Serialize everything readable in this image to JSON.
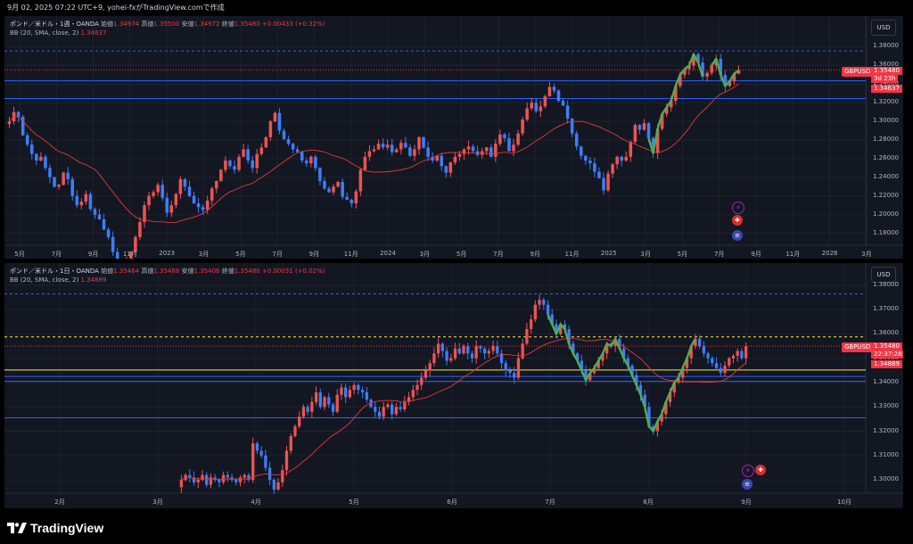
{
  "header": {
    "text": "9月 02, 2025 07:22 UTC+9,  yohei-fxがTradingView.comで作成"
  },
  "chart_data": [
    {
      "type": "candlestick",
      "symbol": "GBPUSD",
      "legend": {
        "title": "ポンド／米ドル・1週・OANDA",
        "open_label": "始値",
        "open": "1.34974",
        "high_label": "高値",
        "high": "1.35500",
        "low_label": "安値",
        "low": "1.34972",
        "close_label": "終値",
        "close": "1.35480",
        "change": "+0.00433 (+0.32%)"
      },
      "indicator": {
        "name": "BB (20, SMA, close, 2)",
        "value": "1.34637"
      },
      "currency": "USD",
      "y_ticks": [
        "1.38000",
        "1.36000",
        "1.34000",
        "1.32000",
        "1.30000",
        "1.28000",
        "1.26000",
        "1.24000",
        "1.22000",
        "1.20000",
        "1.18000"
      ],
      "x_ticks": [
        "5月",
        "7月",
        "9月",
        "11月",
        "2023",
        "3月",
        "5月",
        "7月",
        "9月",
        "11月",
        "2024",
        "3月",
        "5月",
        "7月",
        "9月",
        "11月",
        "2025",
        "3月",
        "5月",
        "7月",
        "9月",
        "11月",
        "2026",
        "3月"
      ],
      "ylim": [
        1.17,
        1.39
      ],
      "price_tags": {
        "last": "1.35480",
        "countdown": "3d 23h",
        "bb": "1.34637"
      },
      "h_lines": [
        1.3435,
        1.3245
      ],
      "dashed_line": 1.3755,
      "close_path": [
        1.3,
        1.31,
        1.305,
        1.285,
        1.275,
        1.265,
        1.258,
        1.262,
        1.25,
        1.24,
        1.23,
        1.232,
        1.245,
        1.238,
        1.22,
        1.21,
        1.214,
        1.222,
        1.206,
        1.2,
        1.195,
        1.184,
        1.176,
        1.16,
        1.15,
        1.145,
        1.15,
        1.16,
        1.176,
        1.192,
        1.21,
        1.22,
        1.224,
        1.232,
        1.218,
        1.202,
        1.21,
        1.222,
        1.238,
        1.23,
        1.22,
        1.212,
        1.208,
        1.205,
        1.215,
        1.228,
        1.236,
        1.248,
        1.258,
        1.252,
        1.248,
        1.262,
        1.27,
        1.258,
        1.25,
        1.265,
        1.272,
        1.283,
        1.3,
        1.309,
        1.29,
        1.281,
        1.276,
        1.27,
        1.267,
        1.258,
        1.255,
        1.262,
        1.25,
        1.236,
        1.228,
        1.224,
        1.23,
        1.235,
        1.219,
        1.216,
        1.212,
        1.225,
        1.248,
        1.262,
        1.268,
        1.27,
        1.276,
        1.272,
        1.275,
        1.267,
        1.27,
        1.277,
        1.272,
        1.263,
        1.27,
        1.283,
        1.272,
        1.262,
        1.258,
        1.263,
        1.252,
        1.245,
        1.256,
        1.262,
        1.265,
        1.27,
        1.273,
        1.268,
        1.264,
        1.268,
        1.272,
        1.262,
        1.276,
        1.286,
        1.282,
        1.268,
        1.275,
        1.287,
        1.302,
        1.314,
        1.32,
        1.311,
        1.316,
        1.327,
        1.337,
        1.333,
        1.322,
        1.317,
        1.303,
        1.287,
        1.273,
        1.263,
        1.258,
        1.255,
        1.246,
        1.239,
        1.226,
        1.244,
        1.254,
        1.262,
        1.258,
        1.262,
        1.278,
        1.296,
        1.291,
        1.298,
        1.282,
        1.266,
        1.292,
        1.308,
        1.315,
        1.322,
        1.338,
        1.35,
        1.356,
        1.36,
        1.372,
        1.363,
        1.348,
        1.352,
        1.36,
        1.367,
        1.35,
        1.338,
        1.343,
        1.351,
        1.355
      ]
    },
    {
      "type": "candlestick",
      "symbol": "GBPUSD",
      "legend": {
        "title": "ポンド／米ドル・1日・OANDA",
        "open_label": "始値",
        "open": "1.35464",
        "high_label": "高値",
        "high": "1.35488",
        "low_label": "安値",
        "low": "1.35406",
        "close_label": "終値",
        "close": "1.35480",
        "change": "+0.00031 (+0.02%)"
      },
      "indicator": {
        "name": "BB (20, SMA, close, 2)",
        "value": "1.34889"
      },
      "currency": "USD",
      "y_ticks": [
        "1.38000",
        "1.37000",
        "1.36000",
        "1.35000",
        "1.34000",
        "1.33000",
        "1.32000",
        "1.31000",
        "1.30000"
      ],
      "x_ticks": [
        "2月",
        "3月",
        "4月",
        "5月",
        "6月",
        "7月",
        "8月",
        "9月",
        "10月"
      ],
      "ylim": [
        1.296,
        1.384
      ],
      "price_tags": {
        "last": "1.35480",
        "countdown": "22:37:28",
        "bb": "1.34889"
      },
      "h_lines": [
        1.3425,
        1.3405,
        1.3255
      ],
      "yellow_line": 1.3452,
      "dashed_lines": [
        1.3765,
        1.3588
      ],
      "close_path": [
        1.3,
        1.302,
        1.301,
        1.299,
        1.3,
        1.302,
        1.298,
        1.301,
        1.3,
        1.299,
        1.302,
        1.301,
        1.3,
        1.299,
        1.301,
        1.302,
        1.3,
        1.315,
        1.312,
        1.31,
        1.305,
        1.3,
        1.296,
        1.299,
        1.304,
        1.312,
        1.318,
        1.322,
        1.326,
        1.33,
        1.328,
        1.332,
        1.336,
        1.33,
        1.334,
        1.331,
        1.328,
        1.335,
        1.338,
        1.334,
        1.337,
        1.339,
        1.337,
        1.336,
        1.333,
        1.33,
        1.328,
        1.326,
        1.33,
        1.331,
        1.327,
        1.33,
        1.329,
        1.332,
        1.334,
        1.337,
        1.339,
        1.342,
        1.345,
        1.348,
        1.352,
        1.356,
        1.353,
        1.349,
        1.35,
        1.354,
        1.352,
        1.355,
        1.352,
        1.35,
        1.355,
        1.354,
        1.352,
        1.353,
        1.355,
        1.352,
        1.348,
        1.345,
        1.344,
        1.342,
        1.35,
        1.356,
        1.362,
        1.366,
        1.372,
        1.374,
        1.372,
        1.368,
        1.364,
        1.36,
        1.364,
        1.362,
        1.356,
        1.352,
        1.349,
        1.345,
        1.341,
        1.344,
        1.346,
        1.349,
        1.352,
        1.356,
        1.355,
        1.358,
        1.354,
        1.35,
        1.347,
        1.343,
        1.339,
        1.335,
        1.33,
        1.322,
        1.32,
        1.324,
        1.327,
        1.332,
        1.336,
        1.34,
        1.342,
        1.346,
        1.35,
        1.355,
        1.358,
        1.355,
        1.352,
        1.35,
        1.348,
        1.346,
        1.344,
        1.347,
        1.35,
        1.351,
        1.353,
        1.35,
        1.355
      ]
    }
  ],
  "footer": {
    "brand": "TradingView"
  }
}
